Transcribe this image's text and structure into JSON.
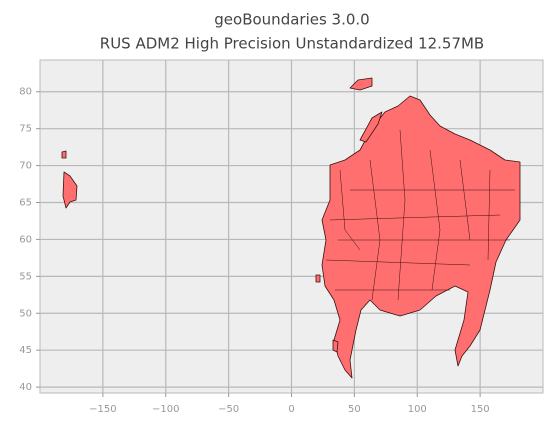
{
  "chart_data": {
    "type": "map",
    "title": "geoBoundaries 3.0.0",
    "subtitle": "RUS ADM2 High Precision Unstandardized 12.57MB",
    "color": "#ff6f6f",
    "xlim": [
      -200,
      200
    ],
    "ylim": [
      39.2,
      84.3
    ],
    "xticks": [
      {
        "value": -150,
        "label": "−150"
      },
      {
        "value": -100,
        "label": "−100"
      },
      {
        "value": -50,
        "label": "−50"
      },
      0,
      50,
      100,
      150
    ],
    "yticks": [
      40,
      45,
      50,
      55,
      60,
      65,
      70,
      75,
      80
    ],
    "grid": true
  }
}
